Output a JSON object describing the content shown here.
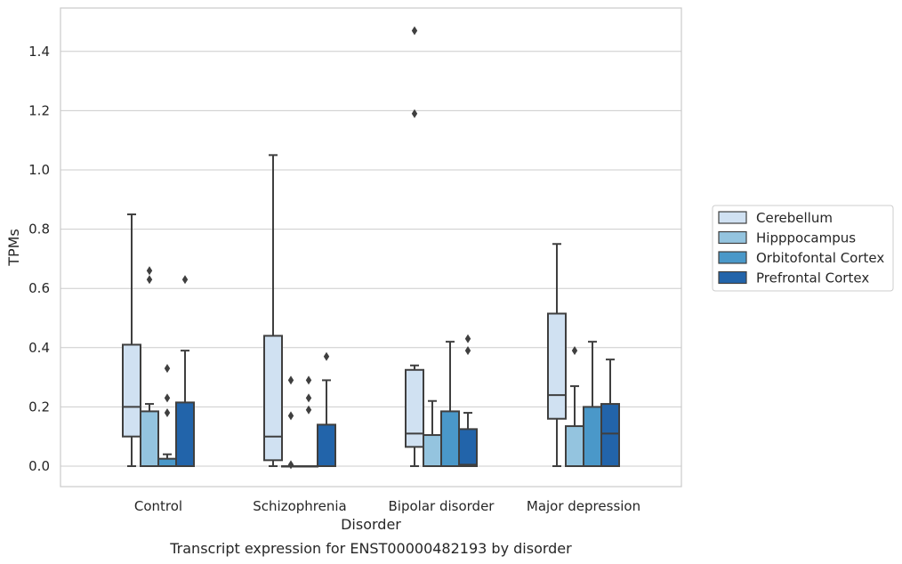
{
  "chart_data": {
    "type": "box",
    "title": "",
    "caption": "Transcript expression for ENST00000482193 by disorder",
    "xlabel": "Disorder",
    "ylabel": "TPMs",
    "ylim": [
      -0.07,
      1.55
    ],
    "yticks": [
      "0.0",
      "0.2",
      "0.4",
      "0.6",
      "0.8",
      "1.0",
      "1.2",
      "1.4"
    ],
    "grid": "horizontal",
    "legend_position": "right",
    "categories": [
      "Control",
      "Schizophrenia",
      "Bipolar disorder",
      "Major depression"
    ],
    "series": [
      {
        "name": "Cerebellum",
        "color": "#d0e1f2",
        "boxes": [
          {
            "whislo": 0.0,
            "q1": 0.1,
            "med": 0.2,
            "q3": 0.41,
            "whishi": 0.85,
            "fliers": []
          },
          {
            "whislo": 0.0,
            "q1": 0.02,
            "med": 0.1,
            "q3": 0.44,
            "whishi": 1.05,
            "fliers": []
          },
          {
            "whislo": 0.0,
            "q1": 0.065,
            "med": 0.11,
            "q3": 0.325,
            "whishi": 0.34,
            "fliers": [
              1.19,
              1.47
            ]
          },
          {
            "whislo": 0.0,
            "q1": 0.16,
            "med": 0.24,
            "q3": 0.515,
            "whishi": 0.75,
            "fliers": []
          }
        ]
      },
      {
        "name": "Hipppocampus",
        "color": "#94c4df",
        "boxes": [
          {
            "whislo": 0.0,
            "q1": 0.0,
            "med": 0.0,
            "q3": 0.185,
            "whishi": 0.21,
            "fliers": [
              0.63,
              0.66
            ]
          },
          {
            "whislo": 0.0,
            "q1": 0.0,
            "med": 0.0,
            "q3": 0.0,
            "whishi": 0.0,
            "fliers": [
              0.005,
              0.17,
              0.29
            ]
          },
          {
            "whislo": 0.0,
            "q1": 0.0,
            "med": 0.0,
            "q3": 0.105,
            "whishi": 0.22,
            "fliers": []
          },
          {
            "whislo": 0.0,
            "q1": 0.0,
            "med": 0.0,
            "q3": 0.135,
            "whishi": 0.27,
            "fliers": [
              0.39
            ]
          }
        ]
      },
      {
        "name": "Orbitofontal Cortex",
        "color": "#4a98c9",
        "boxes": [
          {
            "whislo": 0.0,
            "q1": 0.0,
            "med": 0.0,
            "q3": 0.025,
            "whishi": 0.04,
            "fliers": [
              0.18,
              0.23,
              0.33
            ]
          },
          {
            "whislo": 0.0,
            "q1": 0.0,
            "med": 0.0,
            "q3": 0.0,
            "whishi": 0.0,
            "fliers": [
              0.19,
              0.23,
              0.29
            ]
          },
          {
            "whislo": 0.0,
            "q1": 0.0,
            "med": 0.0,
            "q3": 0.185,
            "whishi": 0.42,
            "fliers": []
          },
          {
            "whislo": 0.0,
            "q1": 0.0,
            "med": 0.0,
            "q3": 0.2,
            "whishi": 0.42,
            "fliers": []
          }
        ]
      },
      {
        "name": "Prefrontal Cortex",
        "color": "#2264aa",
        "boxes": [
          {
            "whislo": 0.0,
            "q1": 0.0,
            "med": 0.0,
            "q3": 0.215,
            "whishi": 0.39,
            "fliers": [
              0.63
            ]
          },
          {
            "whislo": 0.0,
            "q1": 0.0,
            "med": 0.0,
            "q3": 0.14,
            "whishi": 0.29,
            "fliers": [
              0.37
            ]
          },
          {
            "whislo": 0.0,
            "q1": 0.0,
            "med": 0.005,
            "q3": 0.125,
            "whishi": 0.18,
            "fliers": [
              0.39,
              0.43
            ]
          },
          {
            "whislo": 0.0,
            "q1": 0.0,
            "med": 0.11,
            "q3": 0.21,
            "whishi": 0.36,
            "fliers": []
          }
        ]
      }
    ]
  }
}
